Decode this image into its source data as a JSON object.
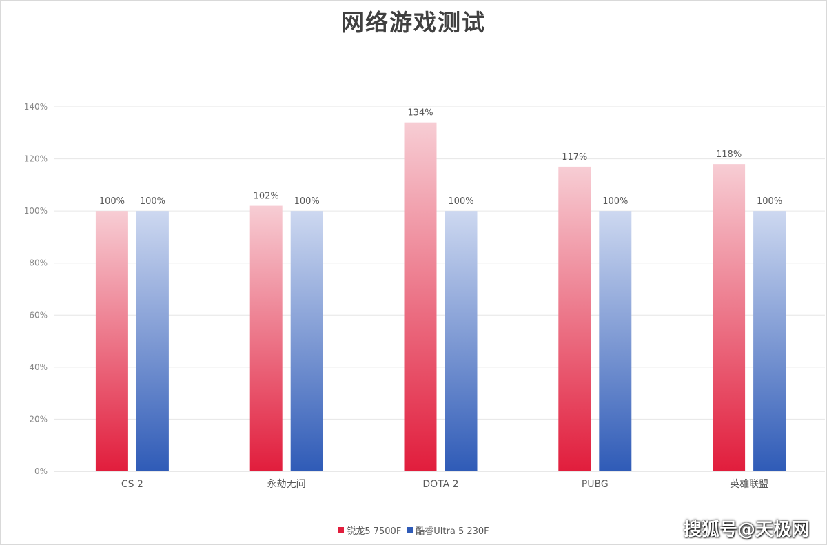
{
  "chart_data": {
    "type": "bar",
    "title": "网络游戏测试",
    "categories": [
      "CS 2",
      "永劫无间",
      "DOTA 2",
      "PUBG",
      "英雄联盟"
    ],
    "series": [
      {
        "name": "锐龙5 7500F",
        "values": [
          100,
          102,
          134,
          117,
          118
        ],
        "labels": [
          "100%",
          "102%",
          "134%",
          "117%",
          "118%"
        ],
        "color_top": "#f7cdd4",
        "color_bottom": "#e11d3c"
      },
      {
        "name": "酷睿Ultra 5 230F",
        "values": [
          100,
          100,
          100,
          100,
          100
        ],
        "labels": [
          "100%",
          "100%",
          "100%",
          "100%",
          "100%"
        ],
        "color_top": "#cdd8f0",
        "color_bottom": "#2f5bb7"
      }
    ],
    "ylim": [
      0,
      140
    ],
    "yticks": [
      "0%",
      "20%",
      "40%",
      "60%",
      "80%",
      "100%",
      "120%",
      "140%"
    ],
    "ytick_values": [
      0,
      20,
      40,
      60,
      80,
      100,
      120,
      140
    ],
    "grid": true,
    "legend_position": "bottom"
  },
  "watermark": "搜狐号@天极网"
}
